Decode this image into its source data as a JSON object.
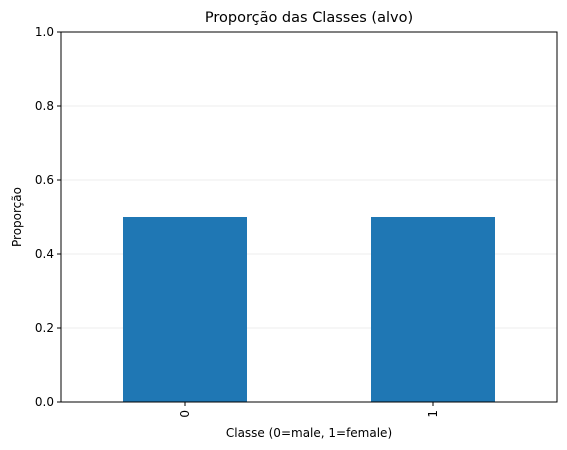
{
  "chart_data": {
    "type": "bar",
    "title": "Proporção das Classes (alvo)",
    "xlabel": "Classe (0=male, 1=female)",
    "ylabel": "Proporção",
    "categories": [
      "0",
      "1"
    ],
    "values": [
      0.5,
      0.5
    ],
    "ylim": [
      0,
      1
    ],
    "yticks": [
      0,
      0.2,
      0.4,
      0.6,
      0.8,
      1.0
    ],
    "ytick_labels": [
      "0.0",
      "0.2",
      "0.4",
      "0.6",
      "0.8",
      "1.0"
    ],
    "xtick_rotation": "vertical",
    "grid": "y-axis",
    "bar_color": "#1f77b4"
  }
}
